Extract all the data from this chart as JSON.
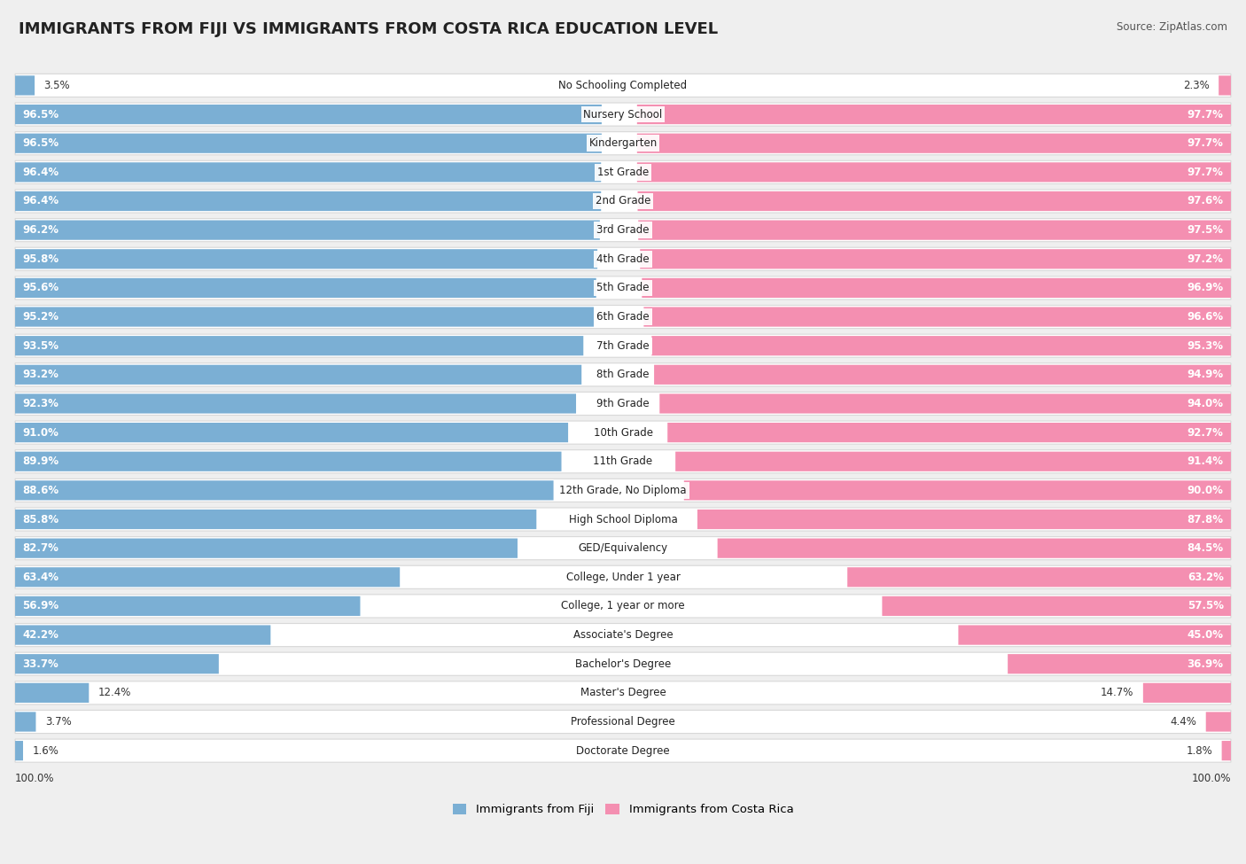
{
  "title": "IMMIGRANTS FROM FIJI VS IMMIGRANTS FROM COSTA RICA EDUCATION LEVEL",
  "source": "Source: ZipAtlas.com",
  "categories": [
    "No Schooling Completed",
    "Nursery School",
    "Kindergarten",
    "1st Grade",
    "2nd Grade",
    "3rd Grade",
    "4th Grade",
    "5th Grade",
    "6th Grade",
    "7th Grade",
    "8th Grade",
    "9th Grade",
    "10th Grade",
    "11th Grade",
    "12th Grade, No Diploma",
    "High School Diploma",
    "GED/Equivalency",
    "College, Under 1 year",
    "College, 1 year or more",
    "Associate's Degree",
    "Bachelor's Degree",
    "Master's Degree",
    "Professional Degree",
    "Doctorate Degree"
  ],
  "fiji_values": [
    3.5,
    96.5,
    96.5,
    96.4,
    96.4,
    96.2,
    95.8,
    95.6,
    95.2,
    93.5,
    93.2,
    92.3,
    91.0,
    89.9,
    88.6,
    85.8,
    82.7,
    63.4,
    56.9,
    42.2,
    33.7,
    12.4,
    3.7,
    1.6
  ],
  "costa_rica_values": [
    2.3,
    97.7,
    97.7,
    97.7,
    97.6,
    97.5,
    97.2,
    96.9,
    96.6,
    95.3,
    94.9,
    94.0,
    92.7,
    91.4,
    90.0,
    87.8,
    84.5,
    63.2,
    57.5,
    45.0,
    36.9,
    14.7,
    4.4,
    1.8
  ],
  "fiji_color": "#7bafd4",
  "costa_rica_color": "#f48fb1",
  "background_color": "#efefef",
  "row_bg_color": "#ffffff",
  "row_border_color": "#d8d8d8",
  "title_fontsize": 13,
  "value_fontsize": 8.5,
  "label_fontsize": 8.5,
  "legend_label_fiji": "Immigrants from Fiji",
  "legend_label_costa_rica": "Immigrants from Costa Rica"
}
